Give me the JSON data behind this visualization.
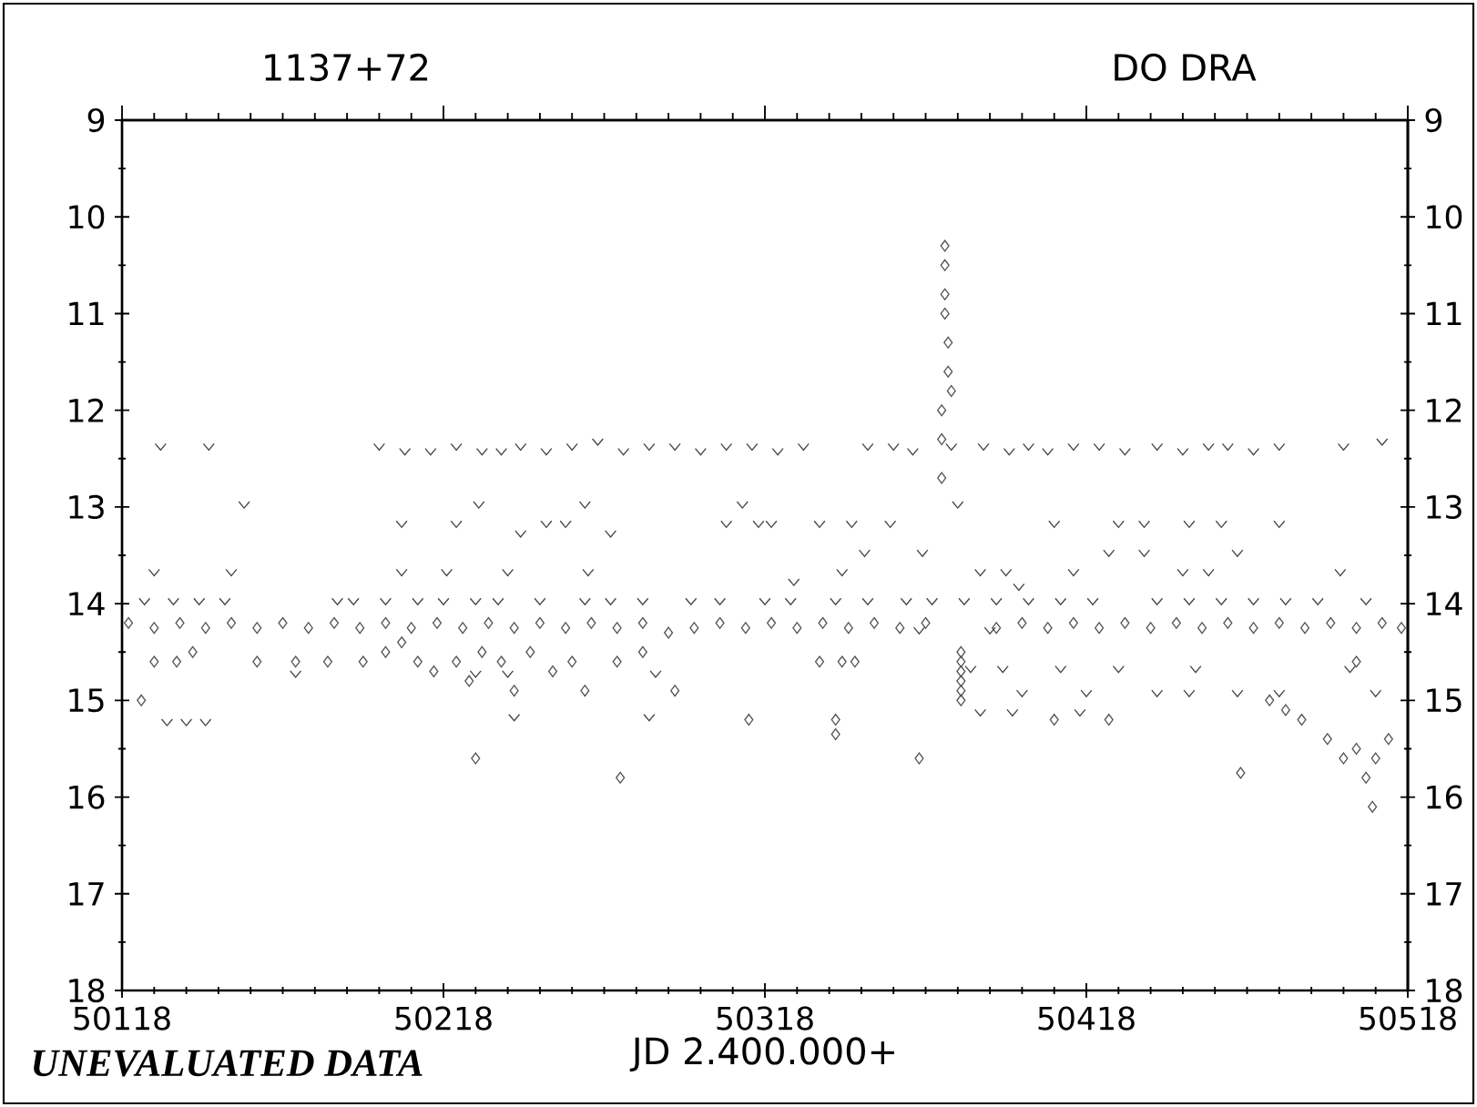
{
  "chart_data": {
    "type": "scatter",
    "title": "DO DRA",
    "subtitle": "1137+72",
    "xlabel": "JD 2.400.000+",
    "annotations": [
      "UNEVALUATED DATA"
    ],
    "xlim": [
      50118,
      50518
    ],
    "ylim": [
      18,
      9
    ],
    "y2lim": [
      18,
      9
    ],
    "xticks": [
      50118,
      50218,
      50318,
      50418,
      50518,
      {
        "value": 50128,
        "label": null
      },
      {
        "value": 50138,
        "label": null
      },
      {
        "value": 50148,
        "label": null
      },
      {
        "value": 50158,
        "label": null
      },
      {
        "value": 50168,
        "label": null
      },
      {
        "value": 50178,
        "label": null
      },
      {
        "value": 50188,
        "label": null
      },
      {
        "value": 50198,
        "label": null
      },
      {
        "value": 50208,
        "label": null
      },
      {
        "value": 50228,
        "label": null
      },
      {
        "value": 50238,
        "label": null
      },
      {
        "value": 50248,
        "label": null
      },
      {
        "value": 50258,
        "label": null
      },
      {
        "value": 50268,
        "label": null
      },
      {
        "value": 50278,
        "label": null
      },
      {
        "value": 50288,
        "label": null
      },
      {
        "value": 50298,
        "label": null
      },
      {
        "value": 50308,
        "label": null
      },
      {
        "value": 50328,
        "label": null
      },
      {
        "value": 50338,
        "label": null
      },
      {
        "value": 50348,
        "label": null
      },
      {
        "value": 50358,
        "label": null
      },
      {
        "value": 50368,
        "label": null
      },
      {
        "value": 50378,
        "label": null
      },
      {
        "value": 50388,
        "label": null
      },
      {
        "value": 50398,
        "label": null
      },
      {
        "value": 50408,
        "label": null
      },
      {
        "value": 50428,
        "label": null
      },
      {
        "value": 50438,
        "label": null
      },
      {
        "value": 50448,
        "label": null
      },
      {
        "value": 50458,
        "label": null
      },
      {
        "value": 50468,
        "label": null
      },
      {
        "value": 50478,
        "label": null
      },
      {
        "value": 50488,
        "label": null
      },
      {
        "value": 50498,
        "label": null
      },
      {
        "value": 50508,
        "label": null
      }
    ],
    "yticks": [
      9,
      10,
      11,
      12,
      13,
      14,
      15,
      16,
      17,
      18,
      {
        "value": 9.5,
        "label": null
      },
      {
        "value": 10.5,
        "label": null
      },
      {
        "value": 11.5,
        "label": null
      },
      {
        "value": 12.5,
        "label": null
      },
      {
        "value": 13.5,
        "label": null
      },
      {
        "value": 14.5,
        "label": null
      },
      {
        "value": 15.5,
        "label": null
      },
      {
        "value": 16.5,
        "label": null
      },
      {
        "value": 17.5,
        "label": null
      }
    ],
    "y2ticks": [
      9,
      10,
      11,
      12,
      13,
      14,
      15,
      16,
      17,
      18,
      {
        "value": 9.5,
        "label": null
      },
      {
        "value": 10.5,
        "label": null
      },
      {
        "value": 11.5,
        "label": null
      },
      {
        "value": 12.5,
        "label": null
      },
      {
        "value": 13.5,
        "label": null
      },
      {
        "value": 14.5,
        "label": null
      },
      {
        "value": 15.5,
        "label": null
      },
      {
        "value": 16.5,
        "label": null
      },
      {
        "value": 17.5,
        "label": null
      }
    ],
    "series": [
      {
        "marker": "diamond",
        "color": "#555555",
        "x": [
          50120,
          50128,
          50136,
          50144,
          50152,
          50160,
          50168,
          50176,
          50184,
          50192,
          50200,
          50208,
          50216,
          50224,
          50232,
          50240,
          50248,
          50256,
          50264,
          50272,
          50280,
          50288,
          50296,
          50304,
          50312,
          50320,
          50328,
          50336,
          50344,
          50352,
          50360,
          50368,
          50390,
          50398,
          50406,
          50414,
          50422,
          50430,
          50438,
          50446,
          50454,
          50462,
          50470,
          50478,
          50486,
          50494,
          50502,
          50510,
          50516,
          50124,
          50128,
          50135,
          50140,
          50160,
          50172,
          50182,
          50193,
          50200,
          50205,
          50210,
          50215,
          50222,
          50226,
          50230,
          50236,
          50240,
          50245,
          50252,
          50258,
          50262,
          50272,
          50280,
          50290,
          50228,
          50273,
          50313,
          50335,
          50340,
          50346,
          50340,
          50342,
          50366,
          50373,
          50373,
          50373,
          50374,
          50374,
          50374,
          50374,
          50375,
          50375,
          50376,
          50379,
          50379,
          50379,
          50379,
          50379,
          50379,
          50408,
          50425,
          50466,
          50475,
          50480,
          50485,
          50493,
          50498,
          50502,
          50505,
          50508,
          50512,
          50507,
          50502
        ],
        "values": [
          14.2,
          14.25,
          14.2,
          14.25,
          14.2,
          14.25,
          14.2,
          14.25,
          14.2,
          14.25,
          14.2,
          14.25,
          14.2,
          14.25,
          14.2,
          14.25,
          14.2,
          14.25,
          14.2,
          14.25,
          14.2,
          14.3,
          14.25,
          14.2,
          14.25,
          14.2,
          14.25,
          14.2,
          14.25,
          14.2,
          14.25,
          14.2,
          14.25,
          14.2,
          14.25,
          14.2,
          14.25,
          14.2,
          14.25,
          14.2,
          14.25,
          14.2,
          14.25,
          14.2,
          14.25,
          14.2,
          14.25,
          14.2,
          14.25,
          15.0,
          14.6,
          14.6,
          14.5,
          14.6,
          14.6,
          14.6,
          14.6,
          14.5,
          14.4,
          14.6,
          14.7,
          14.6,
          14.8,
          14.5,
          14.6,
          14.9,
          14.5,
          14.7,
          14.6,
          14.9,
          14.6,
          14.5,
          14.9,
          15.6,
          15.8,
          15.2,
          14.6,
          15.2,
          14.6,
          15.35,
          14.6,
          15.6,
          12.7,
          12.3,
          12.0,
          10.3,
          10.5,
          10.8,
          11.0,
          11.3,
          11.6,
          11.8,
          14.5,
          14.6,
          14.7,
          14.8,
          14.9,
          15.0,
          15.2,
          15.2,
          15.75,
          15.0,
          15.1,
          15.2,
          15.4,
          15.6,
          15.5,
          15.8,
          15.6,
          15.4,
          16.1,
          14.6
        ]
      },
      {
        "marker": "cross",
        "color": "#444444",
        "x": [
          50130,
          50145,
          50198,
          50206,
          50214,
          50222,
          50230,
          50236,
          50242,
          50250,
          50258,
          50266,
          50274,
          50282,
          50290,
          50298,
          50306,
          50314,
          50322,
          50330,
          50350,
          50358,
          50364,
          50376,
          50386,
          50394,
          50400,
          50406,
          50414,
          50422,
          50430,
          50440,
          50448,
          50456,
          50462,
          50470,
          50478,
          50498,
          50510,
          50156,
          50229,
          50262,
          50311,
          50205,
          50222,
          50250,
          50256,
          50306,
          50316,
          50242,
          50270,
          50320,
          50335,
          50345,
          50357,
          50378,
          50408,
          50428,
          50436,
          50450,
          50460,
          50478,
          50128,
          50152,
          50205,
          50219,
          50238,
          50263,
          50327,
          50342,
          50349,
          50367,
          50385,
          50393,
          50397,
          50414,
          50425,
          50436,
          50448,
          50456,
          50465,
          50497,
          50125,
          50134,
          50142,
          50150,
          50185,
          50190,
          50200,
          50210,
          50218,
          50228,
          50235,
          50248,
          50262,
          50270,
          50280,
          50295,
          50304,
          50318,
          50326,
          50340,
          50350,
          50362,
          50370,
          50380,
          50390,
          50400,
          50410,
          50420,
          50440,
          50450,
          50460,
          50470,
          50480,
          50490,
          50505,
          50382,
          50392,
          50410,
          50428,
          50452,
          50500,
          50398,
          50418,
          50440,
          50450,
          50465,
          50478,
          50508,
          50385,
          50395,
          50416,
          50172,
          50228,
          50238,
          50284,
          50132,
          50138,
          50144,
          50240,
          50282,
          50366,
          50388
        ],
        "values": [
          12.4,
          12.4,
          12.4,
          12.45,
          12.45,
          12.4,
          12.45,
          12.45,
          12.4,
          12.45,
          12.4,
          12.35,
          12.45,
          12.4,
          12.4,
          12.45,
          12.4,
          12.4,
          12.45,
          12.4,
          12.4,
          12.4,
          12.45,
          12.4,
          12.4,
          12.45,
          12.4,
          12.45,
          12.4,
          12.4,
          12.45,
          12.4,
          12.45,
          12.4,
          12.4,
          12.45,
          12.4,
          12.4,
          12.35,
          13.0,
          13.0,
          13.0,
          13.0,
          13.2,
          13.2,
          13.2,
          13.2,
          13.2,
          13.2,
          13.3,
          13.3,
          13.2,
          13.2,
          13.2,
          13.2,
          13.0,
          13.2,
          13.2,
          13.2,
          13.2,
          13.2,
          13.2,
          13.7,
          13.7,
          13.7,
          13.7,
          13.7,
          13.7,
          13.8,
          13.7,
          13.5,
          13.5,
          13.7,
          13.7,
          13.85,
          13.7,
          13.5,
          13.5,
          13.7,
          13.7,
          13.5,
          13.7,
          14.0,
          14.0,
          14.0,
          14.0,
          14.0,
          14.0,
          14.0,
          14.0,
          14.0,
          14.0,
          14.0,
          14.0,
          14.0,
          14.0,
          14.0,
          14.0,
          14.0,
          14.0,
          14.0,
          14.0,
          14.0,
          14.0,
          14.0,
          14.0,
          14.0,
          14.0,
          14.0,
          14.0,
          14.0,
          14.0,
          14.0,
          14.0,
          14.0,
          14.0,
          14.0,
          14.7,
          14.7,
          14.7,
          14.7,
          14.7,
          14.7,
          14.95,
          14.95,
          14.95,
          14.95,
          14.95,
          14.95,
          14.95,
          15.15,
          15.15,
          15.15,
          14.75,
          14.75,
          14.75,
          14.75,
          15.25,
          15.25,
          15.25,
          15.2,
          15.2,
          14.3,
          14.3
        ]
      }
    ]
  }
}
